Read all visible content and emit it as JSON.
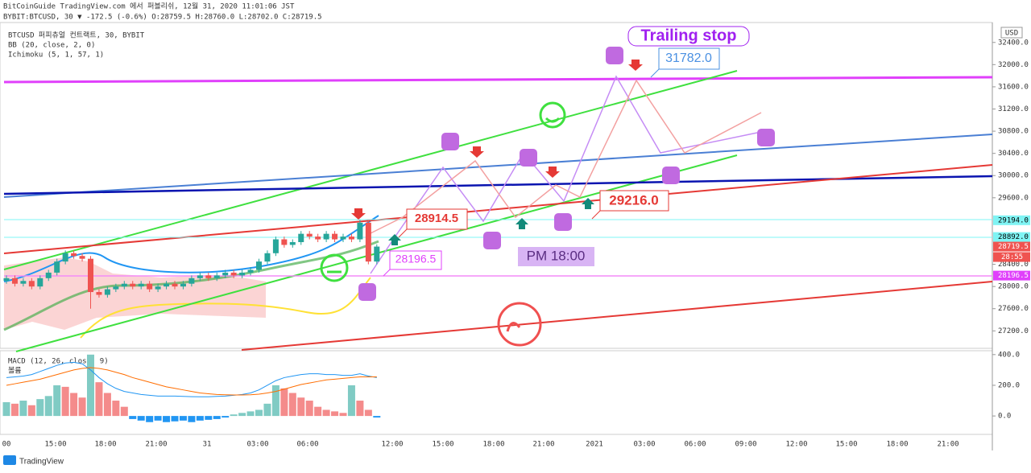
{
  "header": {
    "line1": "BitCoinGuide TradingView.com 에서 퍼블리쉬, 12월 31, 2020 11:01:06 JST",
    "line2": "BYBIT:BTCUSD, 30 ▼ -172.5 (-0.6%) O:28759.5 H:28760.0 L:28702.0 C:28719.5",
    "footer": "TradingView",
    "currency": "USD"
  },
  "chart_data": [
    {
      "type": "candlestick",
      "title": "BTCUSD 퍼피츄얼 컨트랙트, 30, BYBIT",
      "indicators": [
        "BB (20, close, 2, 0)",
        "Ichimoku (5, 1, 57, 1)"
      ],
      "open": [
        28100,
        28150,
        28050,
        28100,
        28000,
        28150,
        28250,
        28450,
        28600,
        28550,
        28500,
        27900,
        27850,
        27950,
        28000,
        28050,
        28000,
        28050,
        27950,
        28000,
        28050,
        28000,
        28050,
        28150,
        28200,
        28150,
        28200,
        28250,
        28200,
        28250,
        28300,
        28450,
        28600,
        28850,
        28750,
        28800,
        28950,
        28900,
        28850,
        28950,
        28850,
        28900,
        28850,
        29150,
        28450
      ],
      "high": [
        28200,
        28200,
        28150,
        28150,
        28200,
        28300,
        28500,
        28650,
        28650,
        28600,
        28550,
        27950,
        28000,
        28050,
        28100,
        28100,
        28100,
        28100,
        28050,
        28100,
        28100,
        28100,
        28200,
        28250,
        28250,
        28250,
        28300,
        28300,
        28300,
        28350,
        28500,
        28650,
        28900,
        28900,
        28850,
        29000,
        29000,
        28950,
        29000,
        29000,
        28950,
        28950,
        29200,
        29200,
        28760
      ],
      "low": [
        28050,
        28000,
        28000,
        27950,
        27950,
        28100,
        28200,
        28400,
        28500,
        28450,
        27600,
        27800,
        27800,
        27900,
        27950,
        27950,
        27950,
        27900,
        27900,
        27950,
        27950,
        27950,
        28000,
        28100,
        28100,
        28100,
        28150,
        28150,
        28150,
        28200,
        28250,
        28400,
        28550,
        28700,
        28700,
        28750,
        28850,
        28800,
        28800,
        28800,
        28800,
        28800,
        28800,
        28400,
        28400
      ],
      "close": [
        28150,
        28050,
        28100,
        28000,
        28150,
        28250,
        28450,
        28600,
        28550,
        28500,
        27900,
        27850,
        27950,
        28000,
        28050,
        28000,
        28050,
        27950,
        28000,
        28050,
        28000,
        28050,
        28150,
        28200,
        28150,
        28200,
        28250,
        28200,
        28250,
        28300,
        28450,
        28600,
        28850,
        28750,
        28800,
        28950,
        28900,
        28850,
        28950,
        28850,
        28900,
        28850,
        29150,
        28450,
        28719.5
      ],
      "up_color": "#26a69a",
      "down_color": "#ef5350",
      "ylim": [
        26900,
        32730
      ],
      "yticks": [
        {
          "value": 32400,
          "label": "32400.0"
        },
        {
          "value": 32000,
          "label": "32000.0"
        },
        {
          "value": 31600,
          "label": "31600.0"
        },
        {
          "value": 31200,
          "label": "31200.0"
        },
        {
          "value": 30800,
          "label": "30800.0"
        },
        {
          "value": 30400,
          "label": "30400.0"
        },
        {
          "value": 30000,
          "label": "30000.0"
        },
        {
          "value": 29600,
          "label": "29600.0"
        },
        {
          "value": 28400,
          "label": "28400.0"
        },
        {
          "value": 28000,
          "label": "28000.0"
        },
        {
          "value": 27600,
          "label": "27600.0"
        },
        {
          "value": 27200,
          "label": "27200.0"
        }
      ],
      "price_tags": [
        {
          "value": 29194,
          "label": "29194.0",
          "color": "#7ff4f4"
        },
        {
          "value": 28892,
          "label": "28892.0",
          "color": "#7ff4f4"
        },
        {
          "value": 28719.5,
          "label": "28719.5",
          "color": "#ef5350"
        },
        {
          "value": 28196.5,
          "label": "28196.5",
          "color": "#e040fb"
        }
      ],
      "countdown": "28:55",
      "xtick_labels": [
        "00",
        "15:00",
        "18:00",
        "21:00",
        "31",
        "03:00",
        "06:00",
        "12:00",
        "15:00",
        "18:00",
        "21:00",
        "2021",
        "03:00",
        "06:00",
        "09:00",
        "12:00",
        "15:00",
        "18:00",
        "21:00"
      ],
      "annotations": [
        "Trailing stop",
        "31782.0",
        "28914.5",
        "29216.0",
        "28196.5",
        "PM 18:00"
      ]
    },
    {
      "type": "macd",
      "title": "MACD (12, 26, close, 9)",
      "subtitle": "볼륨",
      "histogram": [
        90,
        80,
        100,
        70,
        110,
        130,
        200,
        190,
        150,
        120,
        400,
        220,
        150,
        100,
        60,
        -20,
        -30,
        -40,
        -30,
        -40,
        -35,
        -30,
        -40,
        -30,
        -25,
        -20,
        -10,
        10,
        20,
        30,
        40,
        80,
        200,
        180,
        150,
        120,
        100,
        60,
        40,
        30,
        20,
        200,
        100,
        40,
        -10
      ],
      "macd": [
        250,
        255,
        260,
        270,
        290,
        310,
        330,
        345,
        350,
        340,
        300,
        250,
        210,
        180,
        160,
        150,
        140,
        135,
        130,
        130,
        130,
        128,
        126,
        125,
        125,
        128,
        130,
        135,
        140,
        150,
        170,
        200,
        230,
        250,
        260,
        270,
        275,
        275,
        270,
        270,
        265,
        265,
        275,
        260,
        250
      ],
      "signal": [
        200,
        210,
        220,
        230,
        240,
        255,
        270,
        285,
        300,
        310,
        315,
        310,
        300,
        285,
        270,
        250,
        235,
        220,
        205,
        190,
        180,
        170,
        160,
        150,
        145,
        140,
        138,
        137,
        137,
        138,
        142,
        150,
        160,
        175,
        190,
        205,
        215,
        225,
        235,
        240,
        245,
        250,
        255,
        255,
        255
      ],
      "macd_color": "#2196f3",
      "signal_color": "#ff6d00",
      "ylim": [
        -120,
        420
      ],
      "yticks": [
        {
          "value": 400,
          "label": "400.0"
        },
        {
          "value": 200,
          "label": "200.0"
        },
        {
          "value": 0,
          "label": "0.0"
        }
      ]
    }
  ]
}
